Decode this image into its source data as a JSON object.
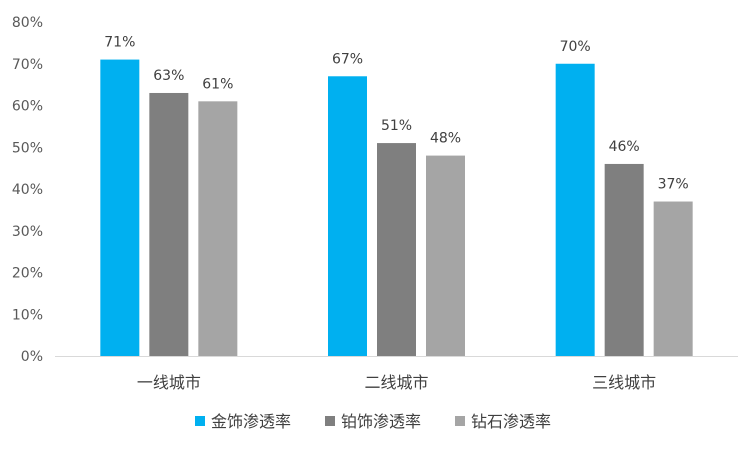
{
  "chart_data": {
    "type": "bar",
    "categories": [
      "一线城市",
      "二线城市",
      "三线城市"
    ],
    "series": [
      {
        "name": "金饰渗透率",
        "color": "#00b0f0",
        "values": [
          71,
          67,
          70
        ]
      },
      {
        "name": "铂饰渗透率",
        "color": "#7f7f7f",
        "values": [
          63,
          51,
          46
        ]
      },
      {
        "name": "钻石渗透率",
        "color": "#a5a5a5",
        "values": [
          61,
          48,
          37
        ]
      }
    ],
    "value_suffix": "%",
    "ylim": [
      0,
      80
    ],
    "yticks": [
      0,
      10,
      20,
      30,
      40,
      50,
      60,
      70,
      80
    ],
    "ytick_labels": [
      "0%",
      "10%",
      "20%",
      "30%",
      "40%",
      "50%",
      "60%",
      "70%",
      "80%"
    ],
    "grid": false,
    "legend_position": "bottom-center",
    "title": "",
    "xlabel": "",
    "ylabel": ""
  }
}
